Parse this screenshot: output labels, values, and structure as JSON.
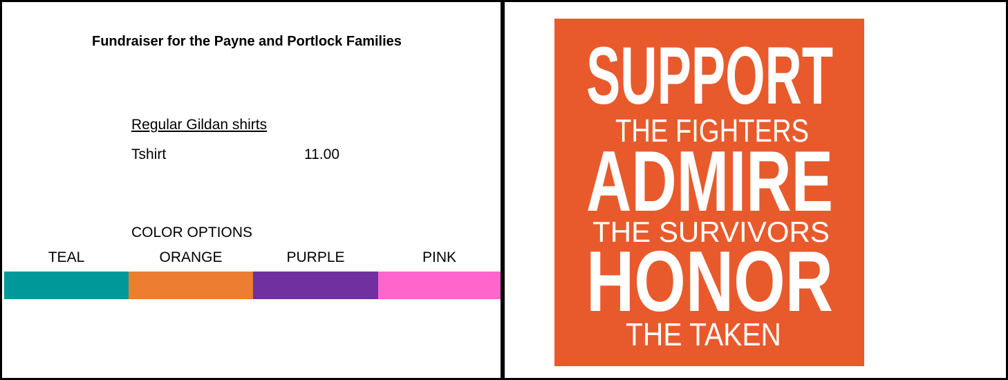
{
  "header": {
    "title": "Fundraiser for the Payne and Portlock Families"
  },
  "pricing": {
    "heading": "Regular Gildan shirts",
    "items": [
      {
        "name": "Tshirt",
        "price": "11.00"
      }
    ]
  },
  "colors": {
    "heading": "COLOR OPTIONS",
    "options": [
      {
        "name": "TEAL",
        "color": "#009999"
      },
      {
        "name": "ORANGE",
        "color": "#ED7D31"
      },
      {
        "name": "PURPLE",
        "color": "#7030A0"
      },
      {
        "name": "PINK",
        "color": "#FF66CC"
      }
    ]
  },
  "poster": {
    "lines": [
      "SUPPORT",
      "THE FIGHTERS",
      "ADMIRE",
      "THE SURVIVORS",
      "HONOR",
      "THE TAKEN"
    ]
  }
}
